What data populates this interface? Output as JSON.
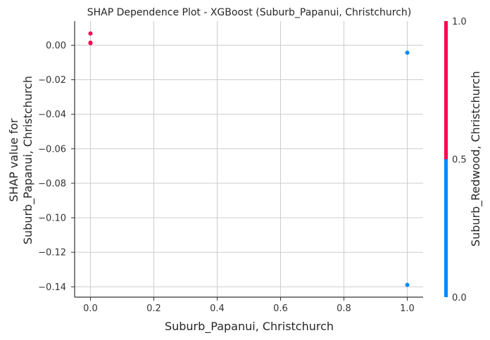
{
  "chart_data": {
    "type": "scatter",
    "title": "SHAP Dependence Plot - XGBoost (Suburb_Papanui, Christchurch)",
    "xlabel": "Suburb_Papanui, Christchurch",
    "ylabel_line1": "SHAP value for",
    "ylabel_line2": "Suburb_Papanui, Christchurch",
    "xlim": [
      -0.05,
      1.05
    ],
    "ylim": [
      -0.146,
      0.014
    ],
    "x_ticks": [
      0.0,
      0.2,
      0.4,
      0.6,
      0.8,
      1.0
    ],
    "x_tick_labels": [
      "0.0",
      "0.2",
      "0.4",
      "0.6",
      "0.8",
      "1.0"
    ],
    "y_ticks": [
      0.0,
      -0.02,
      -0.04,
      -0.06,
      -0.08,
      -0.1,
      -0.12,
      -0.14
    ],
    "y_tick_labels": [
      "0.00",
      "−0.02",
      "−0.04",
      "−0.06",
      "−0.08",
      "−0.10",
      "−0.12",
      "−0.14"
    ],
    "grid": true,
    "points": [
      {
        "x": 0.0,
        "y": 0.0068,
        "color_value": 1.0
      },
      {
        "x": 0.0,
        "y": 0.0015,
        "color_value": 1.0
      },
      {
        "x": 0.0,
        "y": 0.0012,
        "color_value": 1.0
      },
      {
        "x": 1.0,
        "y": -0.0043,
        "color_value": 0.0
      },
      {
        "x": 1.0,
        "y": -0.1389,
        "color_value": 0.0
      }
    ],
    "colorbar": {
      "label": "Suburb_Redwood, Christchurch",
      "range": [
        0.0,
        1.0
      ],
      "ticks": [
        0.0,
        0.5,
        1.0
      ],
      "tick_labels": [
        "0.0",
        "0.5",
        "1.0"
      ],
      "low_color": "#008bfb",
      "high_color": "#ff0051"
    }
  }
}
